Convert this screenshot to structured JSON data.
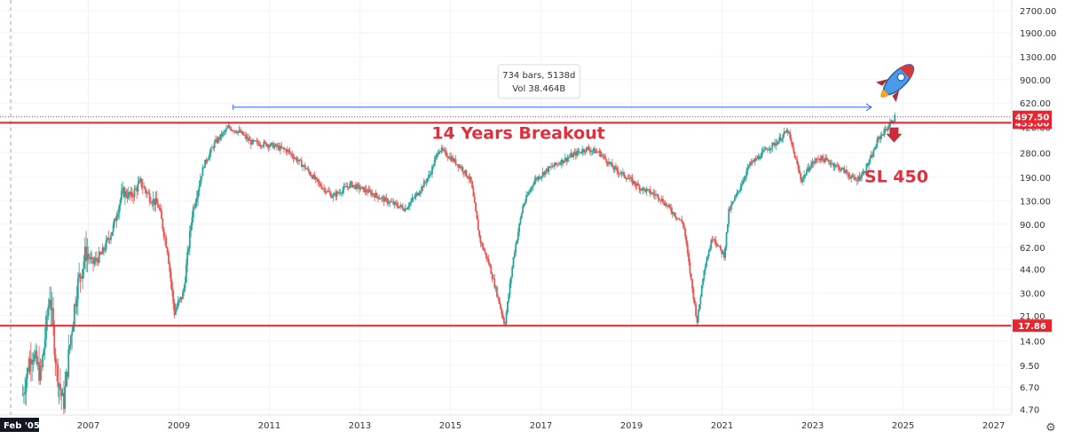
{
  "chart_data": {
    "type": "candlestick",
    "y_scale": "log",
    "ylim": [
      4.3,
      3200
    ],
    "y_ticks": [
      "2700.00",
      "1900.00",
      "1300.00",
      "900.00",
      "620.00",
      "420.00",
      "280.00",
      "190.00",
      "130.00",
      "90.00",
      "62.00",
      "44.00",
      "30.00",
      "21.00",
      "14.00",
      "9.50",
      "6.70",
      "4.70"
    ],
    "y_tick_values": [
      2700,
      1900,
      1300,
      900,
      620,
      420,
      280,
      190,
      130,
      90,
      62,
      44,
      30,
      21,
      14,
      9.5,
      6.7,
      4.7
    ],
    "x_ticks": [
      "2007",
      "2009",
      "2011",
      "2013",
      "2015",
      "2017",
      "2019",
      "2021",
      "2023",
      "2025",
      "2027"
    ],
    "x_tick_values": [
      2007,
      2009,
      2011,
      2013,
      2015,
      2017,
      2019,
      2021,
      2023,
      2025,
      2027
    ],
    "xlim": [
      2005.05,
      2027.4
    ],
    "start_label": "Feb '05",
    "grid": true,
    "price_path": [
      [
        2005.55,
        6.0
      ],
      [
        2005.75,
        12
      ],
      [
        2005.95,
        8
      ],
      [
        2006.15,
        30
      ],
      [
        2006.3,
        9
      ],
      [
        2006.45,
        5
      ],
      [
        2006.6,
        14
      ],
      [
        2006.75,
        33
      ],
      [
        2006.95,
        58
      ],
      [
        2007.1,
        48
      ],
      [
        2007.3,
        56
      ],
      [
        2007.55,
        85
      ],
      [
        2007.75,
        150
      ],
      [
        2007.95,
        140
      ],
      [
        2008.15,
        175
      ],
      [
        2008.35,
        140
      ],
      [
        2008.55,
        120
      ],
      [
        2008.75,
        60
      ],
      [
        2008.9,
        22
      ],
      [
        2009.1,
        30
      ],
      [
        2009.3,
        110
      ],
      [
        2009.55,
        230
      ],
      [
        2009.8,
        330
      ],
      [
        2010.1,
        420
      ],
      [
        2010.35,
        390
      ],
      [
        2010.6,
        330
      ],
      [
        2011.0,
        320
      ],
      [
        2011.4,
        290
      ],
      [
        2011.8,
        220
      ],
      [
        2012.1,
        170
      ],
      [
        2012.4,
        140
      ],
      [
        2012.8,
        170
      ],
      [
        2013.2,
        150
      ],
      [
        2013.6,
        130
      ],
      [
        2014.0,
        115
      ],
      [
        2014.3,
        150
      ],
      [
        2014.55,
        200
      ],
      [
        2014.75,
        300
      ],
      [
        2015.0,
        260
      ],
      [
        2015.25,
        220
      ],
      [
        2015.45,
        180
      ],
      [
        2015.65,
        70
      ],
      [
        2015.85,
        48
      ],
      [
        2016.05,
        28
      ],
      [
        2016.2,
        18
      ],
      [
        2016.4,
        55
      ],
      [
        2016.6,
        120
      ],
      [
        2016.85,
        180
      ],
      [
        2017.1,
        210
      ],
      [
        2017.4,
        240
      ],
      [
        2017.7,
        270
      ],
      [
        2018.0,
        300
      ],
      [
        2018.3,
        280
      ],
      [
        2018.6,
        220
      ],
      [
        2018.9,
        190
      ],
      [
        2019.2,
        160
      ],
      [
        2019.6,
        140
      ],
      [
        2019.9,
        110
      ],
      [
        2020.15,
        90
      ],
      [
        2020.3,
        40
      ],
      [
        2020.45,
        19
      ],
      [
        2020.6,
        44
      ],
      [
        2020.8,
        75
      ],
      [
        2020.95,
        60
      ],
      [
        2021.05,
        55
      ],
      [
        2021.15,
        110
      ],
      [
        2021.35,
        150
      ],
      [
        2021.6,
        230
      ],
      [
        2021.8,
        260
      ],
      [
        2022.0,
        300
      ],
      [
        2022.2,
        330
      ],
      [
        2022.45,
        400
      ],
      [
        2022.6,
        270
      ],
      [
        2022.75,
        180
      ],
      [
        2022.95,
        230
      ],
      [
        2023.15,
        260
      ],
      [
        2023.4,
        240
      ],
      [
        2023.7,
        210
      ],
      [
        2023.95,
        180
      ],
      [
        2024.1,
        200
      ],
      [
        2024.3,
        260
      ],
      [
        2024.45,
        350
      ],
      [
        2024.6,
        400
      ],
      [
        2024.75,
        460
      ],
      [
        2024.82,
        497.5
      ]
    ],
    "levels": [
      {
        "value": 453.0,
        "label": "453.00",
        "color": "#e8242e"
      },
      {
        "value": 17.86,
        "label": "17.86",
        "color": "#e8242e"
      }
    ],
    "current_price": {
      "value": 497.5,
      "label": "497.50",
      "color": "#e8242e"
    },
    "measure": {
      "x_start": 2010.2,
      "x_end": 2024.3,
      "y": 580,
      "line1": "734 bars, 5138d",
      "line2": "Vol 38.464B"
    },
    "annotations": [
      {
        "text": "14 Years Breakout",
        "x": 2016.5,
        "y": 350
      },
      {
        "text": "SL 450",
        "x": 2024.85,
        "y": 175
      }
    ],
    "rocket": {
      "x": 2024.9,
      "y": 900
    },
    "colors": {
      "up": "#26a69a",
      "down": "#ef5350",
      "grid": "#f0f3fa",
      "level": "#e8242e",
      "measure": "#2962ff"
    }
  }
}
